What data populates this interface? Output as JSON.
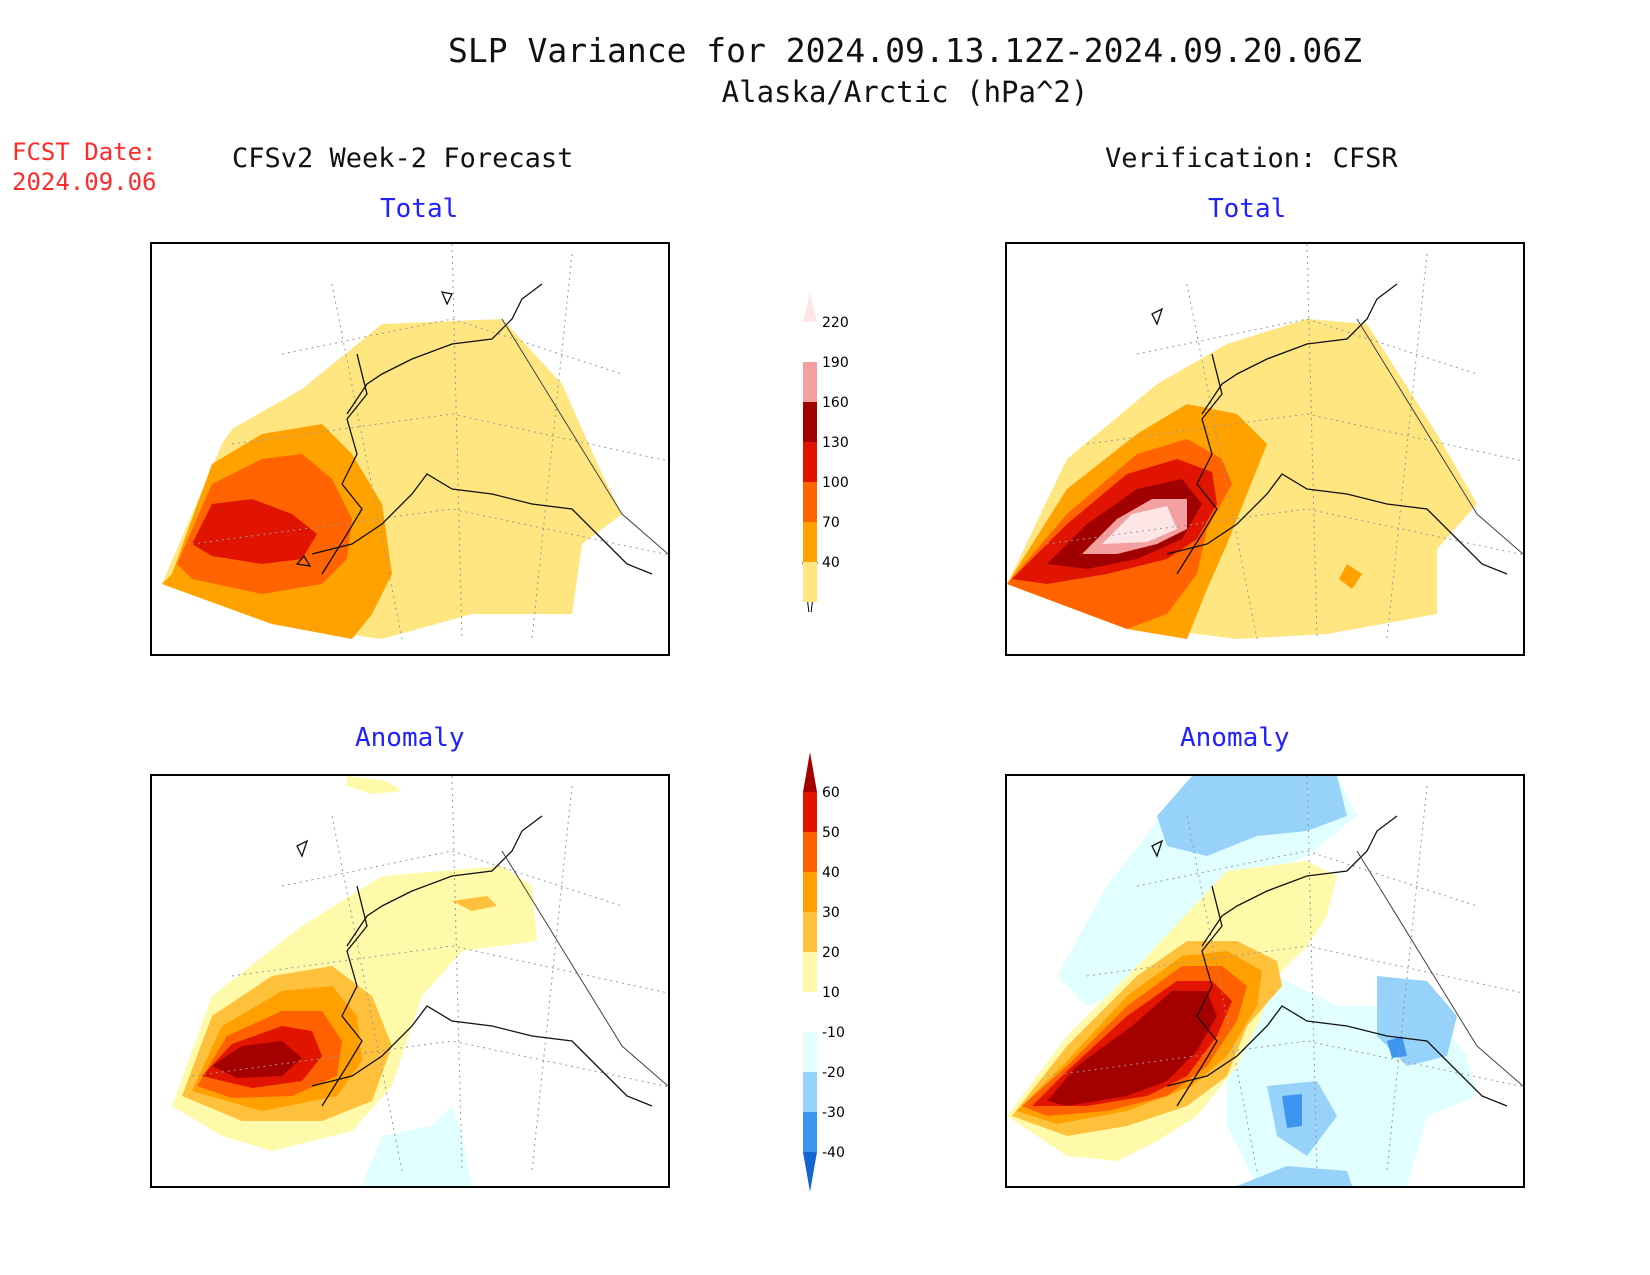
{
  "title": "SLP Variance for 2024.09.13.12Z-2024.09.20.06Z",
  "subtitle": "Alaska/Arctic (hPa^2)",
  "forecast": {
    "label": "FCST Date:",
    "date": "2024.09.06"
  },
  "columns": {
    "left": "CFSv2 Week-2 Forecast",
    "right": "Verification: CFSR"
  },
  "panels": {
    "top_left": "Total",
    "top_right": "Total",
    "bottom_left": "Anomaly",
    "bottom_right": "Anomaly"
  },
  "total_colorbar": {
    "levels": [
      "40",
      "70",
      "100",
      "130",
      "160",
      "190",
      "220"
    ],
    "colors": [
      "#ffe680",
      "#ffa200",
      "#ff6400",
      "#e01400",
      "#a00000",
      "#f5a0a0",
      "#ffe6e6"
    ]
  },
  "anomaly_colorbar": {
    "levels": [
      "-40",
      "-30",
      "-20",
      "-10",
      "10",
      "20",
      "30",
      "40",
      "50",
      "60"
    ],
    "colors": [
      "#1464d2",
      "#3c96f0",
      "#96d2fa",
      "#e1ffff",
      "#ffffff",
      "#fffaaa",
      "#ffc03c",
      "#ffa000",
      "#ff6000",
      "#e11400",
      "#a50000"
    ]
  }
}
